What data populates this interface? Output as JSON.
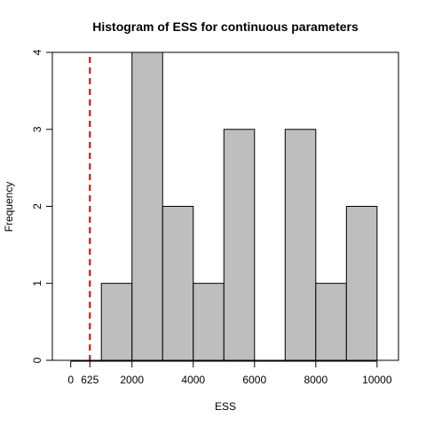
{
  "chart_data": {
    "type": "bar",
    "subtype": "histogram",
    "title": "Histogram of ESS for continuous parameters",
    "xlabel": "ESS",
    "ylabel": "Frequency",
    "bins": [
      {
        "start": 1000,
        "end": 2000,
        "count": 1
      },
      {
        "start": 2000,
        "end": 3000,
        "count": 4
      },
      {
        "start": 3000,
        "end": 4000,
        "count": 2
      },
      {
        "start": 4000,
        "end": 5000,
        "count": 1
      },
      {
        "start": 5000,
        "end": 6000,
        "count": 3
      },
      {
        "start": 6000,
        "end": 7000,
        "count": 0
      },
      {
        "start": 7000,
        "end": 8000,
        "count": 3
      },
      {
        "start": 8000,
        "end": 9000,
        "count": 1
      },
      {
        "start": 9000,
        "end": 10000,
        "count": 2
      }
    ],
    "xlim": [
      -600,
      10700
    ],
    "ylim": [
      0,
      4
    ],
    "xticks": [
      0,
      625,
      2000,
      4000,
      6000,
      8000,
      10000
    ],
    "xtick_labels": [
      "0",
      "625",
      "2000",
      "4000",
      "6000",
      "8000",
      "10000"
    ],
    "yticks": [
      0,
      1,
      2,
      3,
      4
    ],
    "ytick_labels": [
      "0",
      "1",
      "2",
      "3",
      "4"
    ],
    "reference_line": {
      "x": 625,
      "color": "#e00000",
      "style": "dashed"
    },
    "bar_color": "#bebebe",
    "bar_edge_color": "#000000",
    "grid": false
  }
}
